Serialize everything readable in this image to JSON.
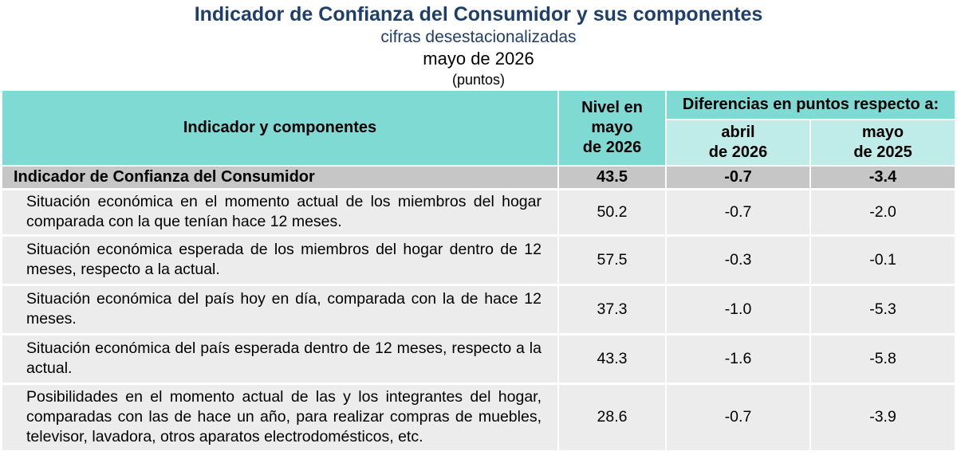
{
  "header": {
    "title": "Indicador de Confianza del Consumidor y sus componentes",
    "subtitle": "cifras desestacionalizadas",
    "date": "mayo de 2026",
    "units": "(puntos)"
  },
  "table": {
    "col_indicator": "Indicador y componentes",
    "col_level_line1": "Nivel en",
    "col_level_line2": "mayo",
    "col_level_line3": "de 2026",
    "col_diff_group": "Diferencias en puntos respecto a:",
    "col_diff_prev_line1": "abril",
    "col_diff_prev_line2": "de 2026",
    "col_diff_year_line1": "mayo",
    "col_diff_year_line2": "de 2025",
    "total": {
      "name": "Indicador de Confianza del Consumidor",
      "level": "43.5",
      "diff_month": "-0.7",
      "diff_year": "-3.4"
    },
    "rows": [
      {
        "name": "Situación económica en el momento actual de los miembros del hogar comparada con la que tenían hace 12 meses.",
        "level": "50.2",
        "diff_month": "-0.7",
        "diff_year": "-2.0"
      },
      {
        "name": "Situación económica esperada de los miembros del hogar dentro de 12 meses, respecto a la actual.",
        "level": "57.5",
        "diff_month": "-0.3",
        "diff_year": "-0.1"
      },
      {
        "name": "Situación económica del país hoy en día, comparada con la de hace 12 meses.",
        "level": "37.3",
        "diff_month": "-1.0",
        "diff_year": "-5.3"
      },
      {
        "name": "Situación económica del país esperada dentro de 12 meses, respecto a la actual.",
        "level": "43.3",
        "diff_month": "-1.6",
        "diff_year": "-5.8"
      },
      {
        "name": "Posibilidades en el momento actual de las y los integrantes del hogar, comparadas con las de hace un año, para realizar compras de muebles, televisor, lavadora, otros aparatos electrodomésticos, etc.",
        "level": "28.6",
        "diff_month": "-0.7",
        "diff_year": "-3.9"
      }
    ]
  }
}
